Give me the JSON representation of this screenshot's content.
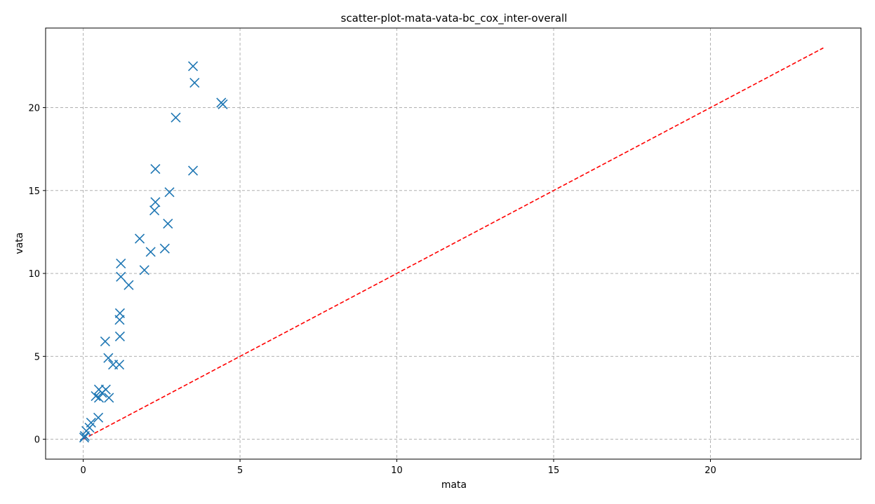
{
  "chart_data": {
    "type": "scatter",
    "title": "scatter-plot-mata-vata-bc_cox_inter-overall",
    "xlabel": "mata",
    "ylabel": "vata",
    "xlim": [
      -1.2,
      24.8
    ],
    "ylim": [
      -1.2,
      24.8
    ],
    "xticks": [
      0,
      5,
      10,
      15,
      20
    ],
    "yticks": [
      0,
      5,
      10,
      15,
      20
    ],
    "grid": true,
    "marker": "x",
    "colors": {
      "points": "#1f77b4",
      "reference": "#ff0000"
    },
    "reference_line": {
      "style": "dashed",
      "x": [
        0,
        23.6
      ],
      "y": [
        0,
        23.6
      ]
    },
    "series": [
      {
        "x": [
          3.5,
          3.55,
          4.4,
          4.45,
          2.95,
          2.3,
          3.5,
          2.75,
          2.3,
          2.27,
          2.7,
          1.8,
          2.6,
          2.15,
          1.2,
          1.95,
          1.2,
          1.45,
          1.17,
          1.16,
          1.17,
          0.7,
          0.8,
          1.15,
          0.95,
          0.5,
          0.72,
          0.6,
          0.4,
          0.5,
          0.82,
          0.48,
          0.25,
          0.2,
          0.1,
          0.05,
          0.03
        ],
        "y": [
          22.5,
          21.5,
          20.3,
          20.2,
          19.4,
          16.3,
          16.2,
          14.9,
          14.3,
          13.8,
          13.0,
          12.1,
          11.5,
          11.3,
          10.6,
          10.2,
          9.8,
          9.3,
          7.6,
          7.2,
          6.2,
          5.9,
          4.9,
          4.5,
          4.5,
          3.0,
          3.0,
          2.8,
          2.6,
          2.5,
          2.5,
          1.3,
          1.0,
          0.7,
          0.5,
          0.2,
          0.1
        ]
      }
    ]
  }
}
